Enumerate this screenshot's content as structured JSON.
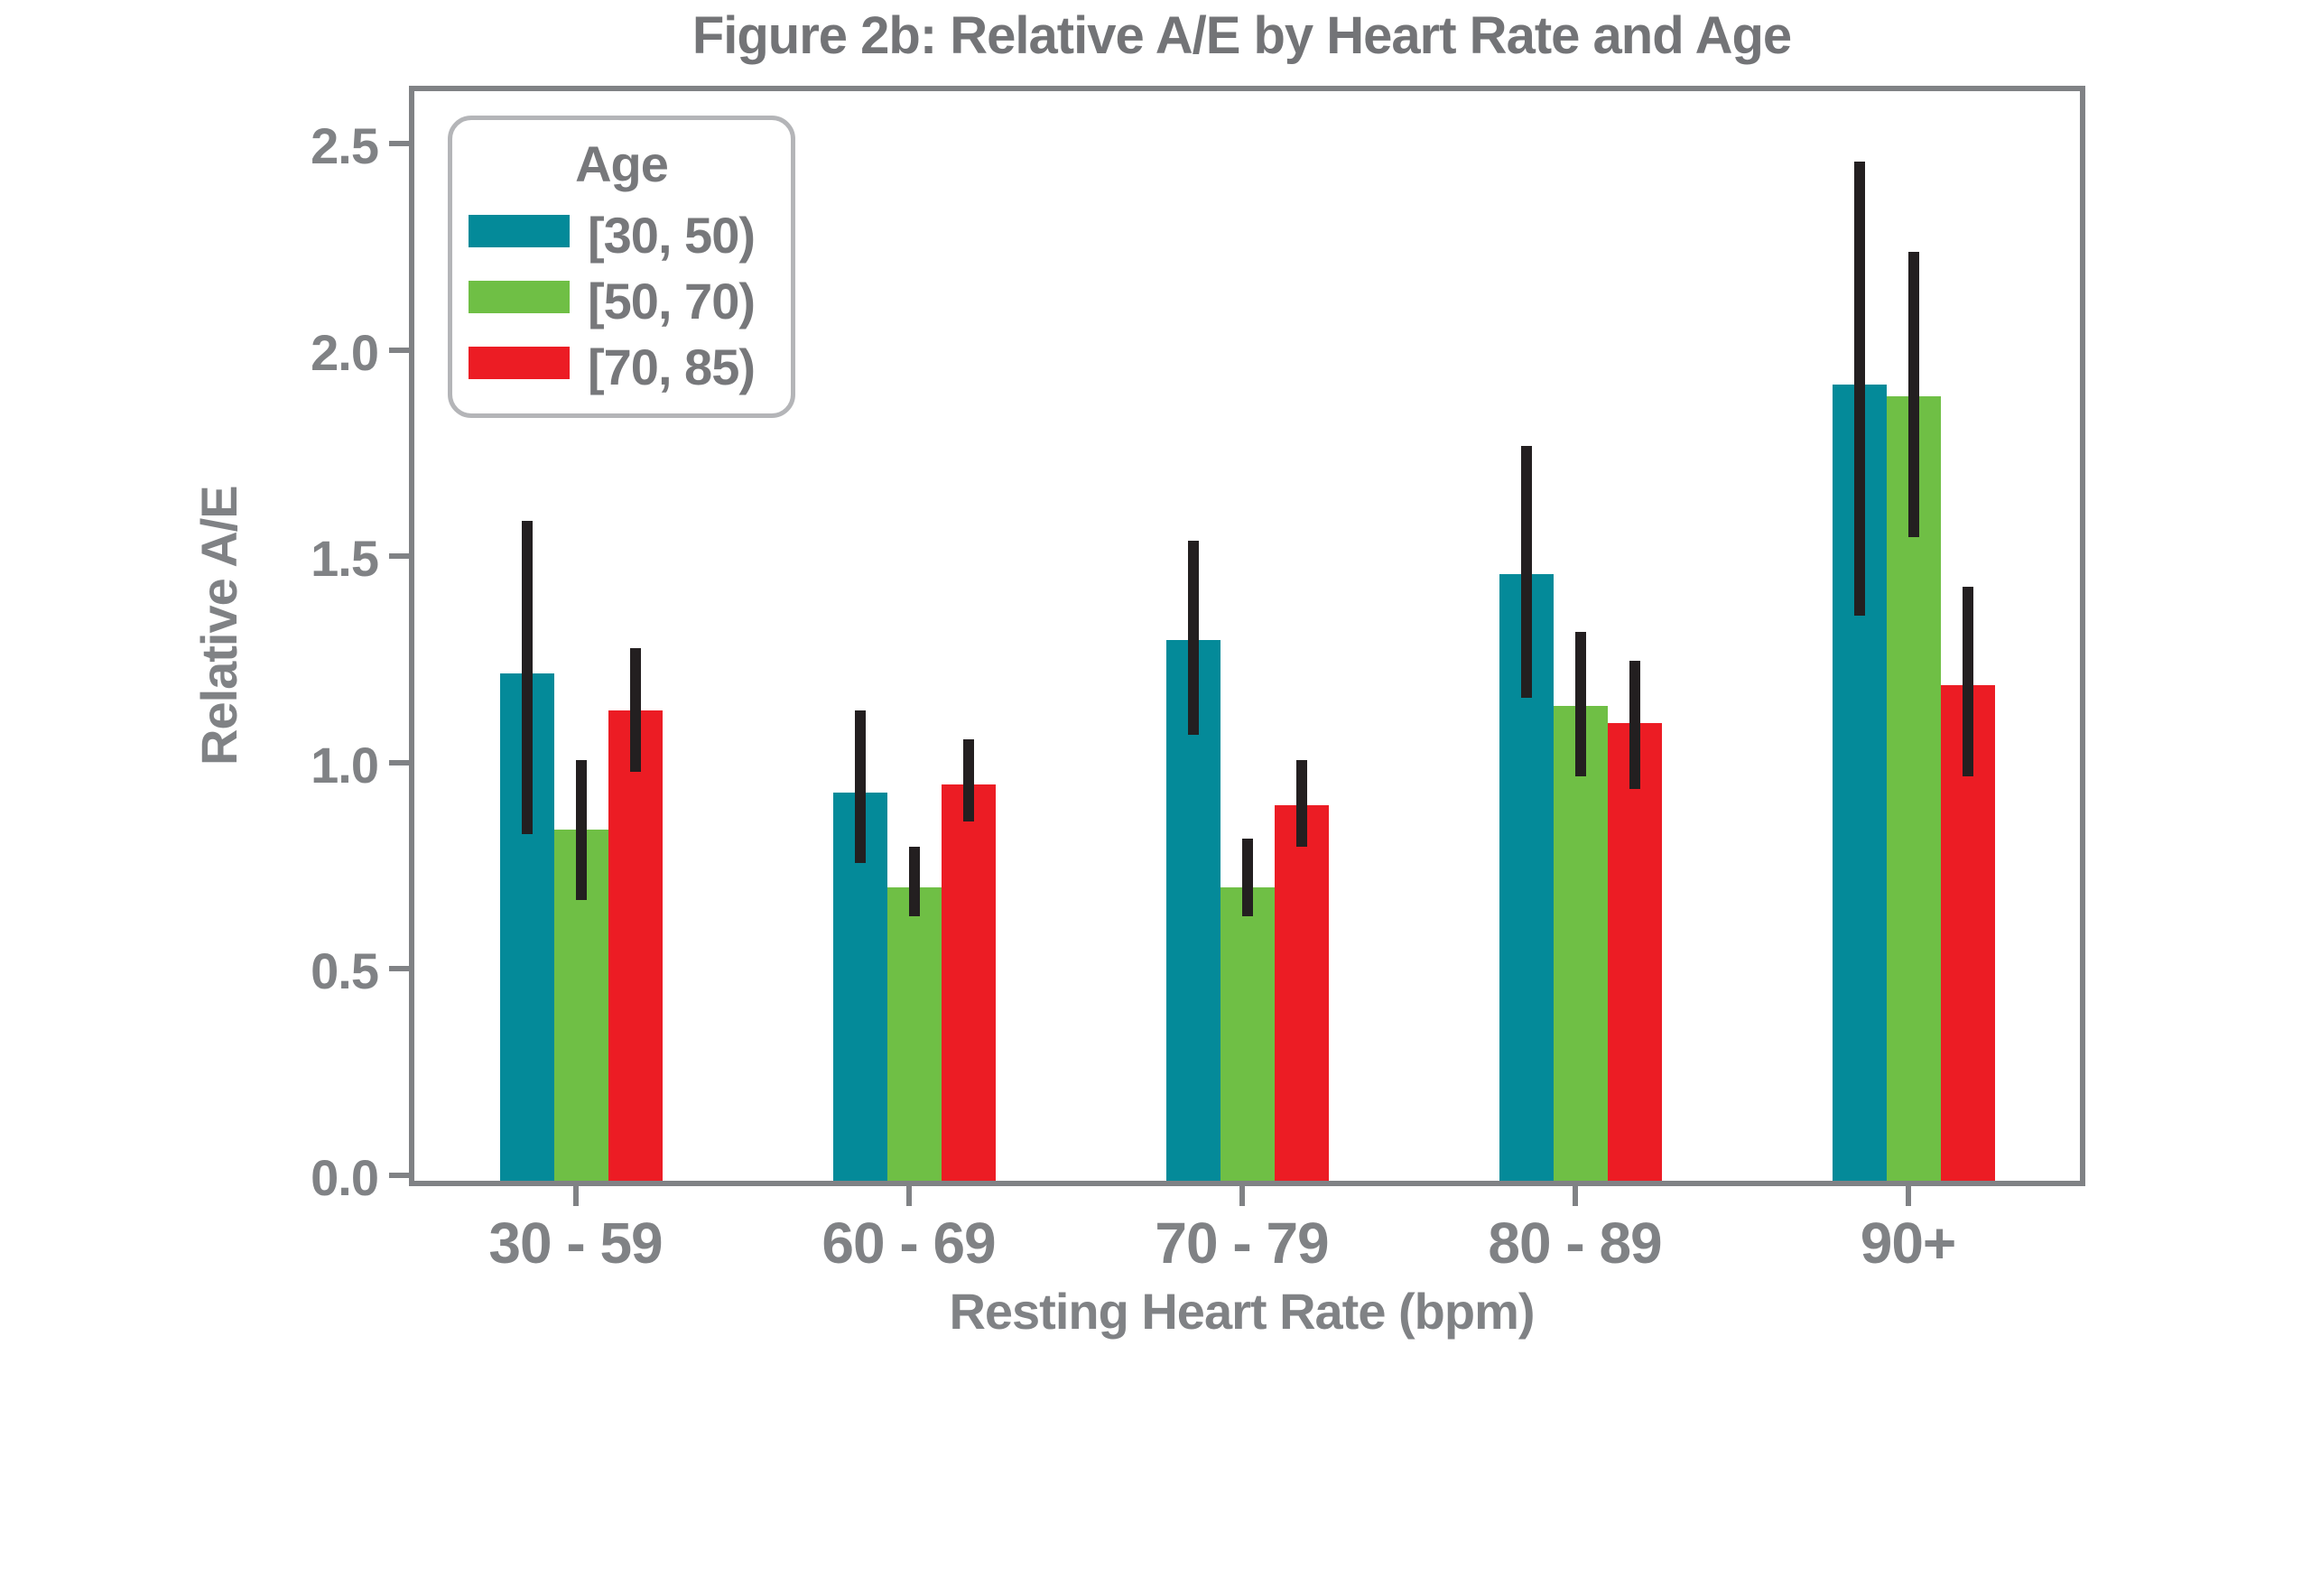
{
  "figure": {
    "title": "Figure 2b: Relative A/E by Heart Rate and Age"
  },
  "chart_data": {
    "type": "bar",
    "title": "Figure 2b: Relative A/E by Heart Rate and Age",
    "xlabel": "Resting Heart Rate (bpm)",
    "ylabel": "Relative A/E",
    "categories": [
      "30 - 59",
      "60 - 69",
      "70 - 79",
      "80 - 89",
      "90+"
    ],
    "ylim": [
      0,
      2.64
    ],
    "yticks": [
      0.0,
      0.5,
      1.0,
      1.5,
      2.0,
      2.5
    ],
    "ytick_labels": [
      "0.0",
      "0.5",
      "1.0",
      "1.5",
      "2.0",
      "2.5"
    ],
    "grid": false,
    "legend_title": "Age",
    "legend_position": "upper-left-inside",
    "error_bars": true,
    "error_bar_color": "#231f20",
    "axis_color": "#808285",
    "text_color": "#77787b",
    "series": [
      {
        "name": "[30, 50)",
        "color": "#048a99",
        "values": [
          1.23,
          0.94,
          1.31,
          1.47,
          1.93
        ],
        "ci_low": [
          0.84,
          0.77,
          1.08,
          1.17,
          1.37
        ],
        "ci_high": [
          1.6,
          1.14,
          1.55,
          1.78,
          2.47
        ]
      },
      {
        "name": "[50, 70)",
        "color": "#6fbf45",
        "values": [
          0.85,
          0.71,
          0.71,
          1.15,
          1.9
        ],
        "ci_low": [
          0.68,
          0.64,
          0.64,
          0.98,
          1.56
        ],
        "ci_high": [
          1.02,
          0.81,
          0.83,
          1.33,
          2.25
        ]
      },
      {
        "name": "[70, 85)",
        "color": "#ec1c24",
        "values": [
          1.14,
          0.96,
          0.91,
          1.11,
          1.2
        ],
        "ci_low": [
          0.99,
          0.87,
          0.81,
          0.95,
          0.98
        ],
        "ci_high": [
          1.29,
          1.07,
          1.02,
          1.26,
          1.44
        ]
      }
    ]
  }
}
